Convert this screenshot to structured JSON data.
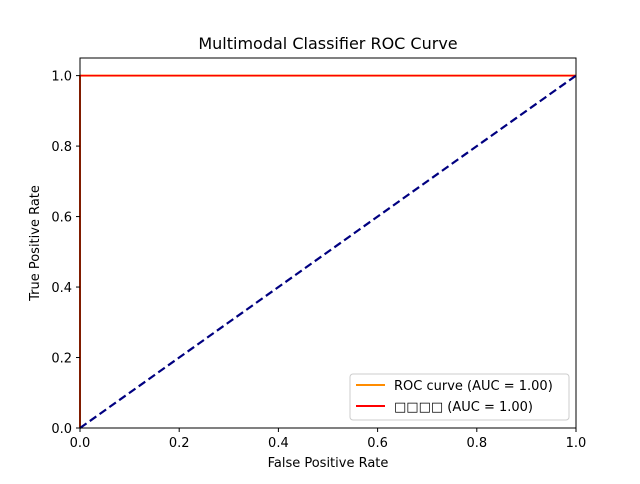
{
  "chart_data": {
    "type": "line",
    "title": "Multimodal Classifier ROC Curve",
    "xlabel": "False Positive Rate",
    "ylabel": "True Positive Rate",
    "xlim": [
      0.0,
      1.0
    ],
    "ylim": [
      0.0,
      1.05
    ],
    "xticks": [
      0.0,
      0.2,
      0.4,
      0.6,
      0.8,
      1.0
    ],
    "yticks": [
      0.0,
      0.2,
      0.4,
      0.6,
      0.8,
      1.0
    ],
    "xtick_labels": [
      "0.0",
      "0.2",
      "0.4",
      "0.6",
      "0.8",
      "1.0"
    ],
    "ytick_labels": [
      "0.0",
      "0.2",
      "0.4",
      "0.6",
      "0.8",
      "1.0"
    ],
    "grid": false,
    "legend_position": "lower-right",
    "series": [
      {
        "name": "ROC curve (AUC = 1.00)",
        "color": "#ff8c00",
        "style": "solid",
        "x": [
          0.0,
          0.0,
          1.0
        ],
        "y": [
          0.0,
          1.0,
          1.0
        ]
      },
      {
        "name": "□□□□ (AUC = 1.00)",
        "color": "#ff0000",
        "style": "solid",
        "x": [
          0.0,
          0.0,
          1.0
        ],
        "y": [
          0.0,
          1.0,
          1.0
        ]
      },
      {
        "color": "#000080",
        "style": "dashed",
        "x": [
          0.0,
          1.0
        ],
        "y": [
          0.0,
          1.0
        ]
      }
    ]
  }
}
